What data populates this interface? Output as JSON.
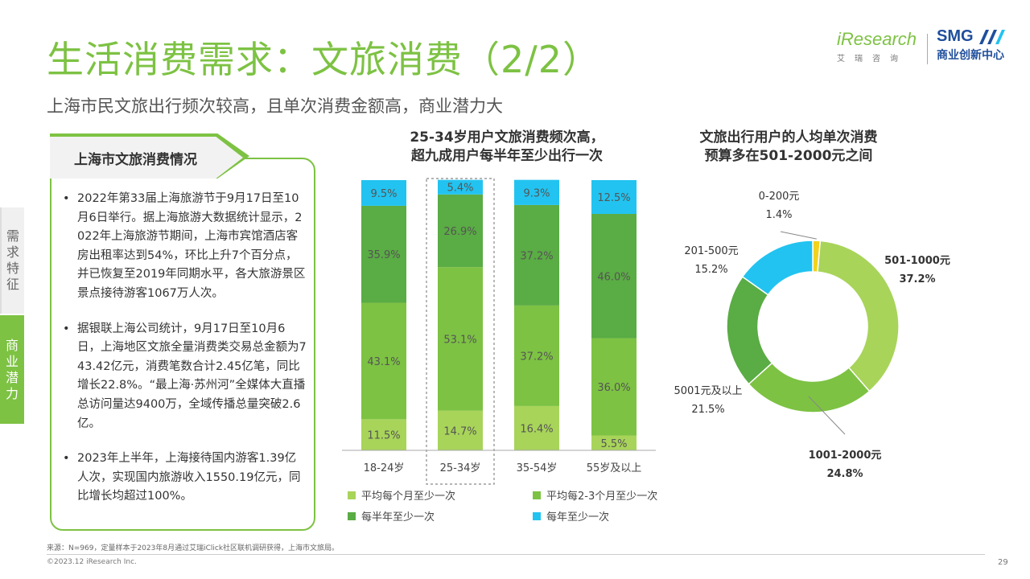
{
  "header": {
    "title": "生活消费需求：文旅消费（2/2）",
    "subtitle": "上海市民文旅出行频次较高，且单次消费金额高，商业潜力大"
  },
  "logos": {
    "iresearch": "iResearch",
    "iresearch_sub": "艾瑞咨询",
    "smg": "SMG",
    "smg_sub": "商业创新中心"
  },
  "side_tabs": [
    "需求特征",
    "商业潜力"
  ],
  "card": {
    "title": "上海市文旅消费情况",
    "bullets": [
      "2022年第33届上海旅游节于9月17日至10月6日举行。据上海旅游大数据统计显示，2022年上海旅游节期间，上海市宾馆酒店客房出租率达到54%，环比上升7个百分点，并已恢复至2019年同期水平，各大旅游景区景点接待游客1067万人次。",
      "据银联上海公司统计，9月17日至10月6日，上海地区文旅全量消费类交易总金额为743.42亿元，消费笔数合计2.45亿笔，同比增长22.8%。“最上海·苏州河”全媒体大直播总访问量达9400万，全域传播总量突破2.6亿。",
      "2023年上半年，上海接待国内游客1.39亿人次，实现国内旅游收入1550.19亿元，同比增长均超过100%。"
    ]
  },
  "chart_data": [
    {
      "type": "bar",
      "stacked": true,
      "percent": true,
      "title": "25-34岁用户文旅消费频次高，\n超九成用户每半年至少出行一次",
      "categories": [
        "18-24岁",
        "25-34岁",
        "35-54岁",
        "55岁及以上"
      ],
      "highlight_category": "25-34岁",
      "series": [
        {
          "name": "平均每个月至少一次",
          "color": "#a8d45a",
          "values": [
            11.5,
            14.7,
            16.4,
            5.5
          ]
        },
        {
          "name": "平均每2-3个月至少一次",
          "color": "#7dc243",
          "values": [
            43.1,
            53.1,
            37.2,
            36.0
          ]
        },
        {
          "name": "每半年至少一次",
          "color": "#5aac44",
          "values": [
            35.9,
            26.9,
            37.2,
            46.0
          ]
        },
        {
          "name": "每年至少一次",
          "color": "#22c3f0",
          "values": [
            9.5,
            5.4,
            9.3,
            12.5
          ]
        }
      ],
      "labels": [
        [
          "11.5%",
          "14.7%",
          "16.4%",
          "5.5%"
        ],
        [
          "43.1%",
          "53.1%",
          "37.2%",
          "36.0%"
        ],
        [
          "35.9%",
          "26.9%",
          "37.2%",
          "46.0%"
        ],
        [
          "9.5%",
          "5.4%",
          "9.3%",
          "12.5%"
        ]
      ],
      "legend_position": "bottom"
    },
    {
      "type": "pie",
      "donut": true,
      "title": "文旅出行用户的人均单次消费\n预算多在501-2000元之间",
      "slices": [
        {
          "name": "0-200元",
          "value": 1.4,
          "label": "1.4%",
          "color": "#f2d21e"
        },
        {
          "name": "501-1000元",
          "value": 37.2,
          "label": "37.2%",
          "color": "#a8d45a"
        },
        {
          "name": "1001-2000元",
          "value": 24.8,
          "label": "24.8%",
          "color": "#7dc243"
        },
        {
          "name": "5001元及以上",
          "value": 21.5,
          "label": "21.5%",
          "color": "#5aac44"
        },
        {
          "name": "201-500元",
          "value": 15.2,
          "label": "15.2%",
          "color": "#22c3f0"
        }
      ]
    }
  ],
  "footer": {
    "source": "来源：N=969，定量样本于2023年8月通过艾瑞iClick社区联机调研获得，上海市文旅局。",
    "copyright": "©2023.12 iResearch Inc.",
    "page": "29"
  }
}
